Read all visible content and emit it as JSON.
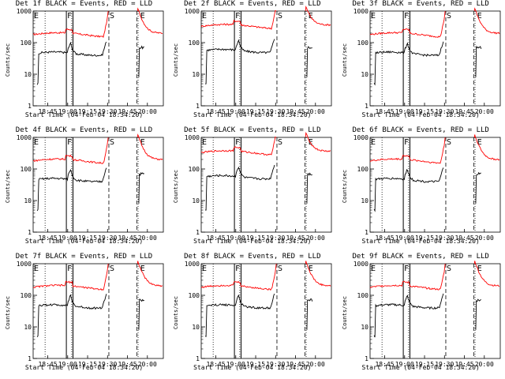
{
  "chart_data": [
    {
      "type": "line",
      "title": "Det 1f BLACK = Events, RED = LLD",
      "xlabel": "Start Time (04-Feb-04 18:34:20)",
      "ylabel": "Counts/sec",
      "scale": "log",
      "ylim": [
        1,
        1000
      ],
      "x_ticks": [
        "18:45",
        "19:00",
        "19:15",
        "19:30",
        "19:45",
        "20:00"
      ],
      "y_ticks": [
        "1",
        "10",
        "100",
        "1000"
      ],
      "markers": [
        {
          "label": "E",
          "time": "18:34"
        },
        {
          "label": "F",
          "time": "18:59"
        },
        {
          "label": "S",
          "time": "19:31"
        },
        {
          "label": "E",
          "time": "19:54"
        }
      ],
      "series": [
        {
          "name": "Events",
          "color": "#000000"
        },
        {
          "name": "LLD",
          "color": "#ff0000"
        }
      ]
    },
    {
      "type": "line",
      "title": "Det 2f BLACK = Events, RED = LLD",
      "xlabel": "Start Time (04-Feb-04 18:34:20)",
      "ylabel": "Counts/sec",
      "scale": "log",
      "ylim": [
        1,
        1000
      ],
      "x_ticks": [
        "18:45",
        "19:00",
        "19:15",
        "19:30",
        "19:45",
        "20:00"
      ],
      "y_ticks": [
        "1",
        "10",
        "100",
        "1000"
      ],
      "markers": [
        {
          "label": "E",
          "time": "18:34"
        },
        {
          "label": "F",
          "time": "18:59"
        },
        {
          "label": "S",
          "time": "19:31"
        },
        {
          "label": "E",
          "time": "19:54"
        }
      ],
      "series": [
        {
          "name": "Events",
          "color": "#000000"
        },
        {
          "name": "LLD",
          "color": "#ff0000"
        }
      ]
    },
    {
      "type": "line",
      "title": "Det 3f BLACK = Events, RED = LLD",
      "xlabel": "Start Time (04-Feb-04 18:34:20)",
      "ylabel": "Counts/sec",
      "scale": "log",
      "ylim": [
        1,
        1000
      ],
      "x_ticks": [
        "18:45",
        "19:00",
        "19:15",
        "19:30",
        "19:45",
        "20:00"
      ],
      "y_ticks": [
        "1",
        "10",
        "100",
        "1000"
      ],
      "markers": [
        {
          "label": "E",
          "time": "18:34"
        },
        {
          "label": "F",
          "time": "18:59"
        },
        {
          "label": "S",
          "time": "19:31"
        },
        {
          "label": "E",
          "time": "19:54"
        }
      ],
      "series": [
        {
          "name": "Events",
          "color": "#000000"
        },
        {
          "name": "LLD",
          "color": "#ff0000"
        }
      ]
    },
    {
      "type": "line",
      "title": "Det 4f BLACK = Events, RED = LLD",
      "xlabel": "Start Time (04-Feb-04 18:34:20)",
      "ylabel": "Counts/sec",
      "scale": "log",
      "ylim": [
        1,
        1000
      ],
      "x_ticks": [
        "18:45",
        "19:00",
        "19:15",
        "19:30",
        "19:45",
        "20:00"
      ],
      "y_ticks": [
        "1",
        "10",
        "100",
        "1000"
      ],
      "markers": [
        {
          "label": "E",
          "time": "18:34"
        },
        {
          "label": "F",
          "time": "18:59"
        },
        {
          "label": "S",
          "time": "19:31"
        },
        {
          "label": "E",
          "time": "19:54"
        }
      ],
      "series": [
        {
          "name": "Events",
          "color": "#000000"
        },
        {
          "name": "LLD",
          "color": "#ff0000"
        }
      ]
    },
    {
      "type": "line",
      "title": "Det 5f BLACK = Events, RED = LLD",
      "xlabel": "Start Time (04-Feb-04 18:34:20)",
      "ylabel": "Counts/sec",
      "scale": "log",
      "ylim": [
        1,
        1000
      ],
      "x_ticks": [
        "18:45",
        "19:00",
        "19:15",
        "19:30",
        "19:45",
        "20:00"
      ],
      "y_ticks": [
        "1",
        "10",
        "100",
        "1000"
      ],
      "markers": [
        {
          "label": "E",
          "time": "18:34"
        },
        {
          "label": "F",
          "time": "18:59"
        },
        {
          "label": "S",
          "time": "19:31"
        },
        {
          "label": "E",
          "time": "19:54"
        }
      ],
      "series": [
        {
          "name": "Events",
          "color": "#000000"
        },
        {
          "name": "LLD",
          "color": "#ff0000"
        }
      ]
    },
    {
      "type": "line",
      "title": "Det 6f BLACK = Events, RED = LLD",
      "xlabel": "Start Time (04-Feb-04 18:34:20)",
      "ylabel": "Counts/sec",
      "scale": "log",
      "ylim": [
        1,
        1000
      ],
      "x_ticks": [
        "18:45",
        "19:00",
        "19:15",
        "19:30",
        "19:45",
        "20:00"
      ],
      "y_ticks": [
        "1",
        "10",
        "100",
        "1000"
      ],
      "markers": [
        {
          "label": "E",
          "time": "18:34"
        },
        {
          "label": "F",
          "time": "18:59"
        },
        {
          "label": "S",
          "time": "19:31"
        },
        {
          "label": "E",
          "time": "19:54"
        }
      ],
      "series": [
        {
          "name": "Events",
          "color": "#000000"
        },
        {
          "name": "LLD",
          "color": "#ff0000"
        }
      ]
    },
    {
      "type": "line",
      "title": "Det 7f BLACK = Events, RED = LLD",
      "xlabel": "Start Time (04-Feb-04 18:34:20)",
      "ylabel": "Counts/sec",
      "scale": "log",
      "ylim": [
        1,
        1000
      ],
      "x_ticks": [
        "18:45",
        "19:00",
        "19:15",
        "19:30",
        "19:45",
        "20:00"
      ],
      "y_ticks": [
        "1",
        "10",
        "100",
        "1000"
      ],
      "markers": [
        {
          "label": "E",
          "time": "18:34"
        },
        {
          "label": "F",
          "time": "18:59"
        },
        {
          "label": "S",
          "time": "19:31"
        },
        {
          "label": "E",
          "time": "19:54"
        }
      ],
      "series": [
        {
          "name": "Events",
          "color": "#000000"
        },
        {
          "name": "LLD",
          "color": "#ff0000"
        }
      ]
    },
    {
      "type": "line",
      "title": "Det 8f BLACK = Events, RED = LLD",
      "xlabel": "Start Time (04-Feb-04 18:34:20)",
      "ylabel": "Counts/sec",
      "scale": "log",
      "ylim": [
        1,
        1000
      ],
      "x_ticks": [
        "18:45",
        "19:00",
        "19:15",
        "19:30",
        "19:45",
        "20:00"
      ],
      "y_ticks": [
        "1",
        "10",
        "100",
        "1000"
      ],
      "markers": [
        {
          "label": "E",
          "time": "18:34"
        },
        {
          "label": "F",
          "time": "18:59"
        },
        {
          "label": "S",
          "time": "19:31"
        },
        {
          "label": "E",
          "time": "19:54"
        }
      ],
      "series": [
        {
          "name": "Events",
          "color": "#000000"
        },
        {
          "name": "LLD",
          "color": "#ff0000"
        }
      ]
    },
    {
      "type": "line",
      "title": "Det 9f BLACK = Events, RED = LLD",
      "xlabel": "Start Time (04-Feb-04 18:34:20)",
      "ylabel": "Counts/sec",
      "scale": "log",
      "ylim": [
        1,
        1000
      ],
      "x_ticks": [
        "18:45",
        "19:00",
        "19:15",
        "19:30",
        "19:45",
        "20:00"
      ],
      "y_ticks": [
        "1",
        "10",
        "100",
        "1000"
      ],
      "markers": [
        {
          "label": "E",
          "time": "18:34"
        },
        {
          "label": "F",
          "time": "18:59"
        },
        {
          "label": "S",
          "time": "19:31"
        },
        {
          "label": "E",
          "time": "19:54"
        }
      ],
      "series": [
        {
          "name": "Events",
          "color": "#000000"
        },
        {
          "name": "LLD",
          "color": "#ff0000"
        }
      ]
    }
  ]
}
